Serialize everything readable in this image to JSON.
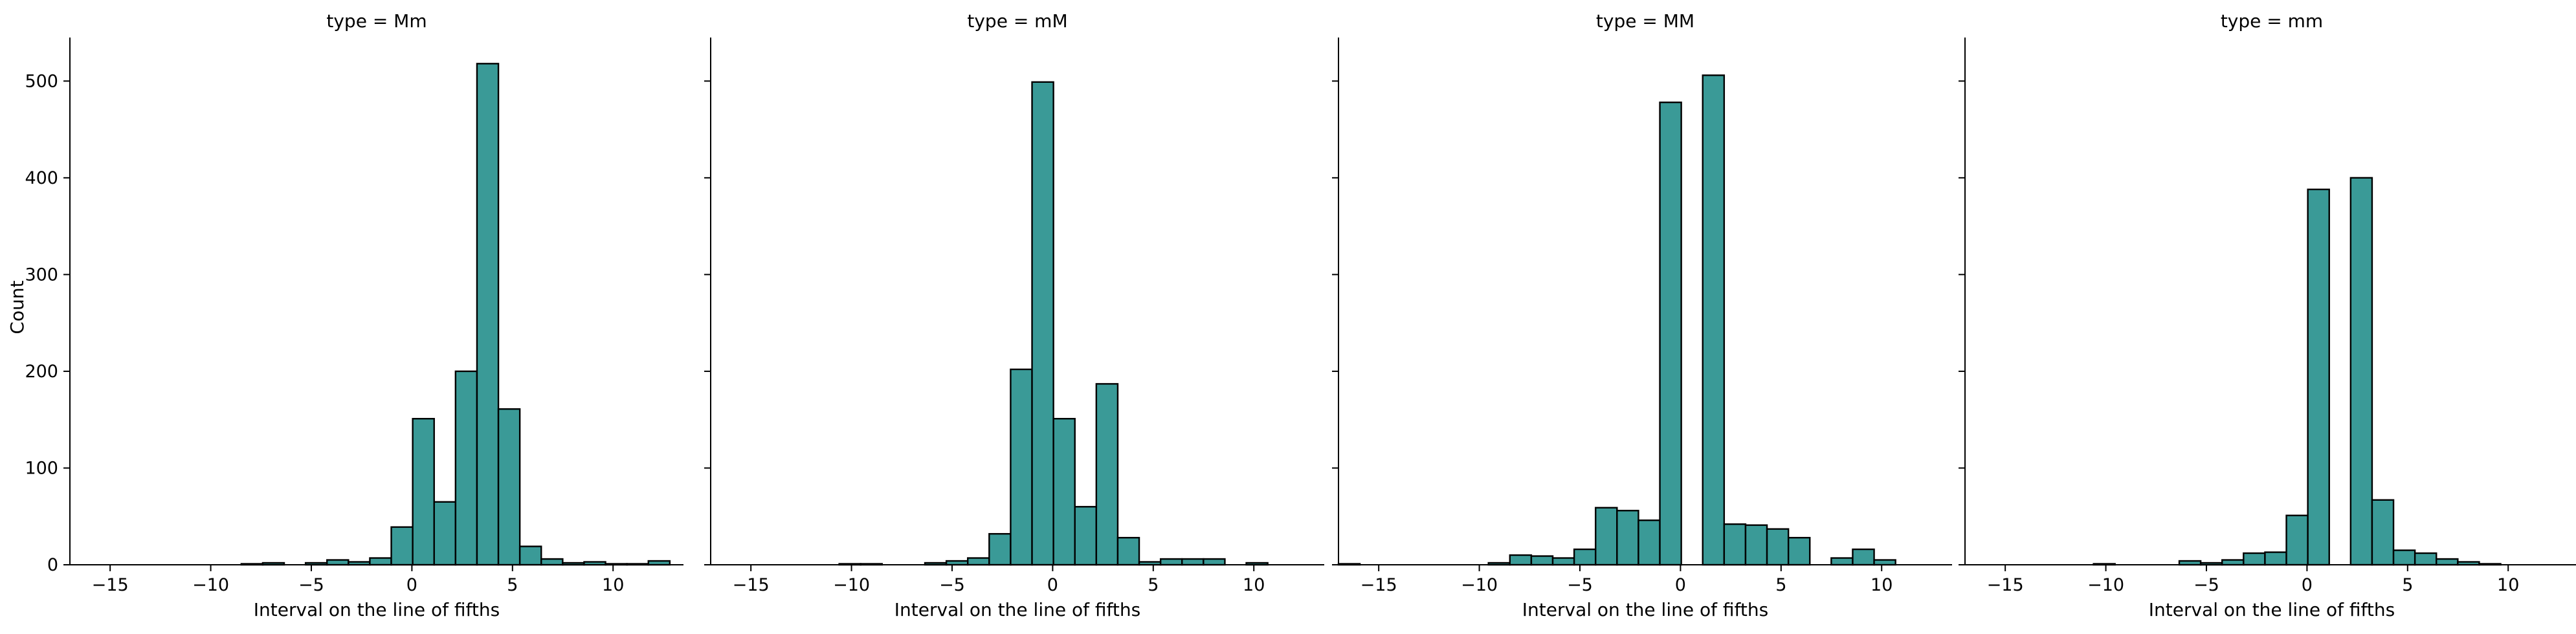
{
  "chart_data": {
    "type": "bar",
    "layout": "facet-grid",
    "shared_ylabel": "Count",
    "ylim": [
      0,
      545
    ],
    "yticks": [
      0,
      100,
      200,
      300,
      400,
      500
    ],
    "xlim": [
      -17,
      13.5
    ],
    "xticks": [
      -15,
      -10,
      -5,
      0,
      5,
      10
    ],
    "bin_edges": [
      -17.0,
      -15.935,
      -14.87,
      -13.8,
      -12.74,
      -11.675,
      -10.61,
      -9.545,
      -8.48,
      -7.415,
      -6.35,
      -5.285,
      -4.22,
      -3.155,
      -2.09,
      -1.025,
      0.04,
      1.105,
      2.17,
      3.235,
      4.3,
      5.365,
      6.43,
      7.495,
      8.56,
      9.625,
      10.69,
      11.755,
      12.82
    ],
    "bar_color": "#3a9a97",
    "edge_color": "#000000",
    "grid": false,
    "panels": [
      {
        "title": "type = Mm",
        "xlabel": "Interval on the line of fifths",
        "values": [
          0,
          0,
          0,
          0,
          0,
          0,
          0,
          0,
          1,
          2,
          0,
          2,
          5,
          3,
          7,
          39,
          151,
          65,
          200,
          518,
          161,
          19,
          6,
          2,
          3,
          1,
          1,
          4
        ]
      },
      {
        "title": "type = mM",
        "xlabel": "Interval on the line of fifths",
        "values": [
          0,
          0,
          0,
          0,
          0,
          0,
          1,
          1,
          0,
          0,
          2,
          4,
          7,
          32,
          202,
          499,
          151,
          60,
          187,
          28,
          3,
          6,
          6,
          6,
          0,
          2,
          0,
          0
        ]
      },
      {
        "title": "type = MM",
        "xlabel": "Interval on the line of fifths",
        "values": [
          1,
          0,
          0,
          0,
          0,
          0,
          0,
          2,
          10,
          9,
          7,
          16,
          59,
          56,
          46,
          478,
          0,
          506,
          42,
          41,
          37,
          28,
          0,
          7,
          16,
          5,
          0,
          0
        ]
      },
      {
        "title": "type = mm",
        "xlabel": "Interval on the line of fifths",
        "values": [
          0,
          0,
          0,
          0,
          0,
          0,
          1,
          0,
          0,
          0,
          4,
          2,
          5,
          12,
          13,
          51,
          388,
          0,
          400,
          67,
          15,
          12,
          6,
          3,
          1,
          0,
          0,
          0
        ]
      }
    ]
  }
}
